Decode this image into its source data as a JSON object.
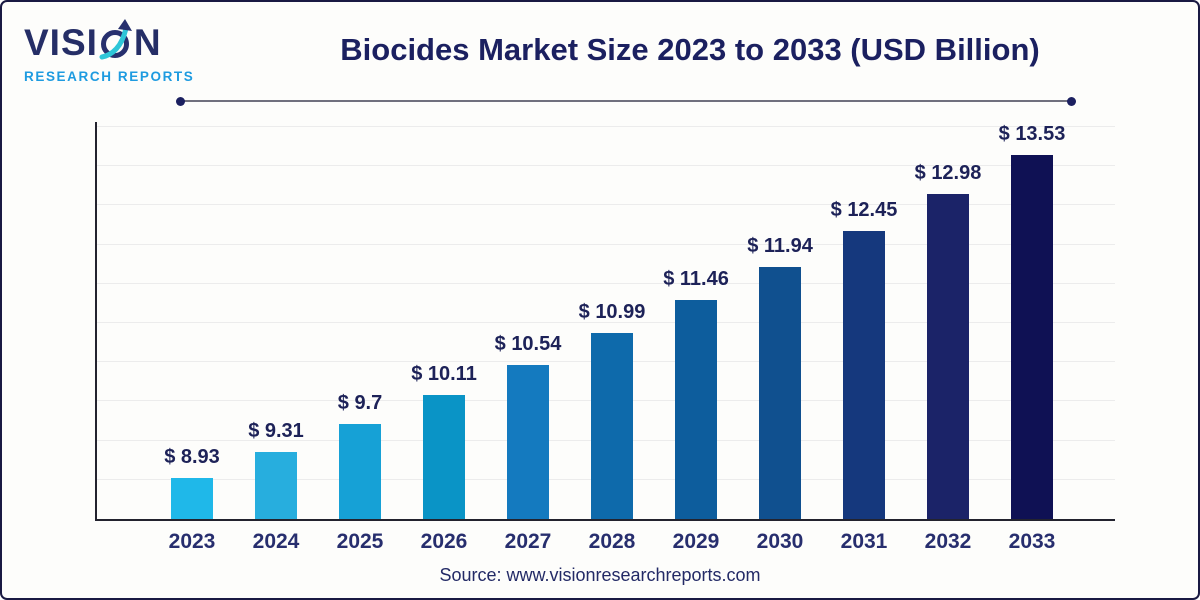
{
  "brand": {
    "name_pre": "VISI",
    "name_post": "N",
    "subtitle": "RESEARCH REPORTS",
    "name_color": "#252e66",
    "subtitle_color": "#1e9be0",
    "arrow_teal": "#2ec6d8",
    "arrow_navy": "#27306e"
  },
  "header": {
    "title": "Biocides Market Size 2023 to 2033 (USD Billion)"
  },
  "footer": {
    "source": "Source: www.visionresearchreports.com"
  },
  "chart_data": {
    "type": "bar",
    "title": "Biocides Market Size 2023 to 2033 (USD Billion)",
    "unit": "USD Billion",
    "value_prefix": "$ ",
    "categories": [
      "2023",
      "2024",
      "2025",
      "2026",
      "2027",
      "2028",
      "2029",
      "2030",
      "2031",
      "2032",
      "2033"
    ],
    "values": [
      8.93,
      9.31,
      9.7,
      10.11,
      10.54,
      10.99,
      11.46,
      11.94,
      12.45,
      12.98,
      13.53
    ],
    "value_labels": [
      "$ 8.93",
      "$ 9.31",
      "$ 9.7",
      "$ 10.11",
      "$ 10.54",
      "$ 10.99",
      "$ 11.46",
      "$ 11.94",
      "$ 12.45",
      "$ 12.98",
      "$ 13.53"
    ],
    "bar_colors": [
      "#1fb8e9",
      "#27aede",
      "#16a1d6",
      "#0a94c6",
      "#147abf",
      "#0e6aab",
      "#0d5d9d",
      "#10508f",
      "#15387d",
      "#1b2368",
      "#0f1154"
    ],
    "ylim": [
      8.35,
      13.53
    ],
    "y_axis_ticks": "none",
    "grid": "horizontal",
    "gridline_count": 10,
    "legend": "none",
    "xlabel": "",
    "ylabel": ""
  }
}
